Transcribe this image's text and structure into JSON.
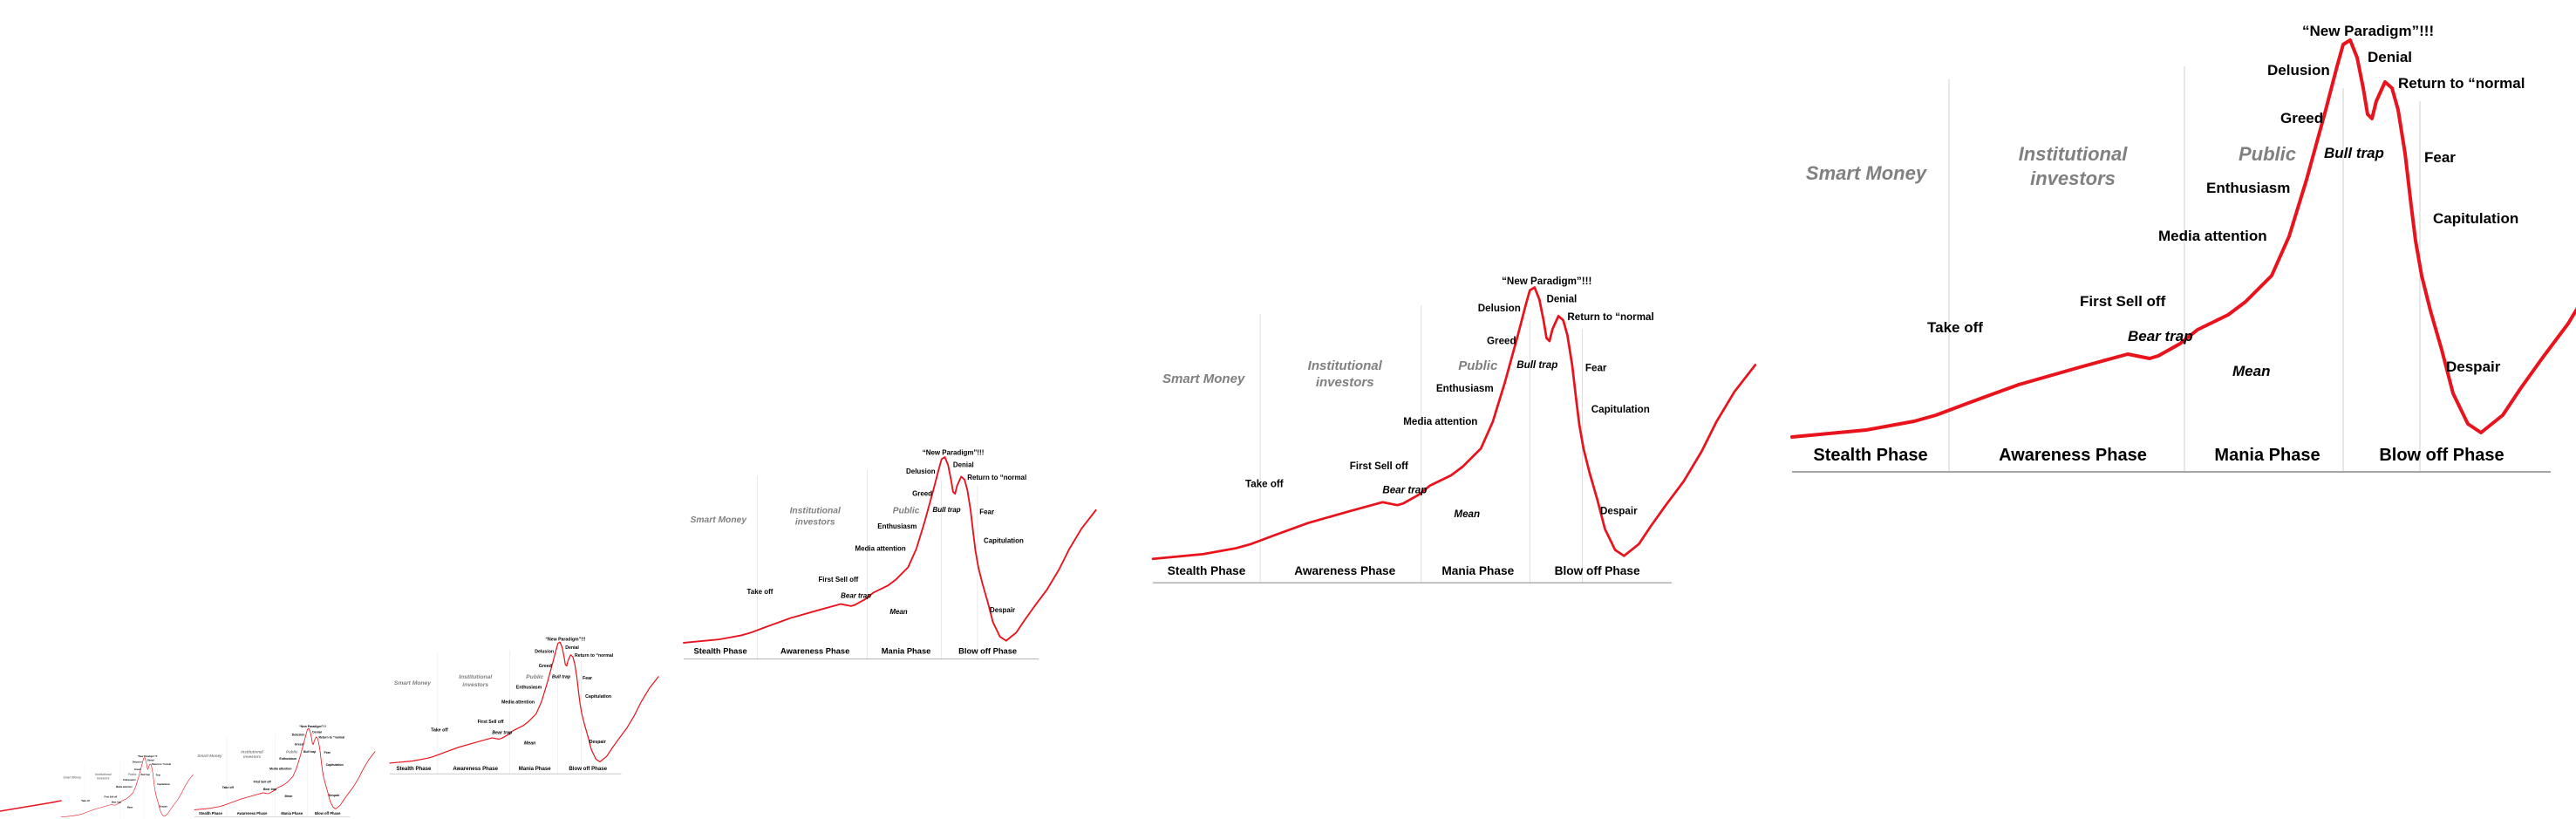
{
  "diagram": {
    "curve_color": "#e8131c",
    "annotations": [
      {
        "id": "new-paradigm",
        "text": "“New Paradigm”!!!"
      },
      {
        "id": "denial",
        "text": "Denial"
      },
      {
        "id": "delusion",
        "text": "Delusion"
      },
      {
        "id": "return-normal",
        "text": "Return to “normal"
      },
      {
        "id": "greed",
        "text": "Greed"
      },
      {
        "id": "bull-trap",
        "text": "Bull trap",
        "italic": true
      },
      {
        "id": "fear",
        "text": "Fear"
      },
      {
        "id": "enthusiasm",
        "text": "Enthusiasm"
      },
      {
        "id": "capitulation",
        "text": "Capitulation"
      },
      {
        "id": "media-attention",
        "text": "Media attention"
      },
      {
        "id": "first-sell-off",
        "text": "First Sell off"
      },
      {
        "id": "take-off",
        "text": "Take off"
      },
      {
        "id": "bear-trap",
        "text": "Bear trap",
        "italic": true
      },
      {
        "id": "mean",
        "text": "Mean",
        "italic": true
      },
      {
        "id": "despair",
        "text": "Despair"
      }
    ],
    "groups": [
      {
        "id": "smart-money",
        "lines": [
          "Smart Money"
        ]
      },
      {
        "id": "institutional-investors",
        "lines": [
          "Institutional",
          "investors"
        ]
      },
      {
        "id": "public",
        "lines": [
          "Public"
        ]
      }
    ],
    "phases": [
      {
        "id": "stealth",
        "text": "Stealth Phase"
      },
      {
        "id": "awareness",
        "text": "Awareness Phase"
      },
      {
        "id": "mania",
        "text": "Mania Phase"
      },
      {
        "id": "blow-off",
        "text": "Blow off Phase"
      }
    ]
  }
}
